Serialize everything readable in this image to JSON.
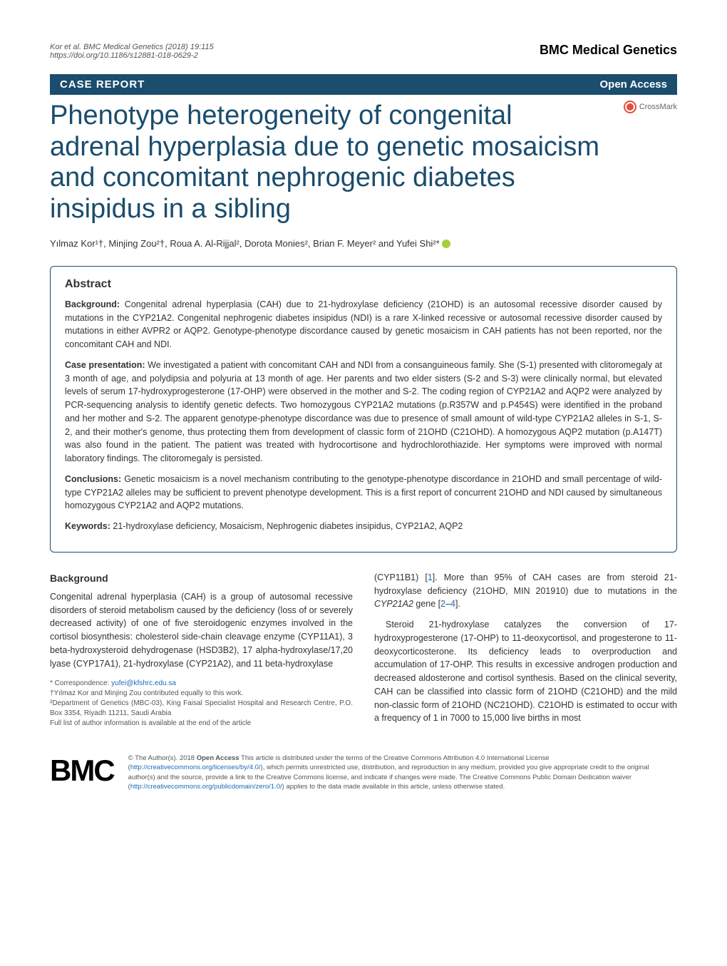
{
  "meta": {
    "citation": "Kor et al. BMC Medical Genetics    (2018) 19:115",
    "doi": "https://doi.org/10.1186/s12881-018-0629-2",
    "journal": "BMC Medical Genetics"
  },
  "article_type_bar": {
    "type": "CASE REPORT",
    "access": "Open Access"
  },
  "crossmark": "CrossMark",
  "title": "Phenotype heterogeneity of congenital adrenal hyperplasia due to genetic mosaicism and concomitant nephrogenic diabetes insipidus in a sibling",
  "authors": "Yılmaz Kor¹†, Minjing Zou²†, Roua A. Al-Rijjal², Dorota Monies², Brian F. Meyer² and Yufei Shi²*",
  "abstract": {
    "heading": "Abstract",
    "background_label": "Background:",
    "background": " Congenital adrenal hyperplasia (CAH) due to 21-hydroxylase deficiency (21OHD) is an autosomal recessive disorder caused by mutations in the CYP21A2. Congenital nephrogenic diabetes insipidus (NDI) is a rare X-linked recessive or autosomal recessive disorder caused by mutations in either AVPR2 or AQP2. Genotype-phenotype discordance caused by genetic mosaicism in CAH patients has not been reported, nor the concomitant CAH and NDI.",
    "case_label": "Case presentation:",
    "case": " We investigated a patient with concomitant CAH and NDI from a consanguineous family. She (S-1) presented with clitoromegaly at 3 month of age, and polydipsia and polyuria at 13 month of age. Her parents and two elder sisters (S-2 and S-3) were clinically normal, but elevated levels of serum 17-hydroxyprogesterone (17-OHP) were observed in the mother and S-2. The coding region of CYP21A2 and AQP2 were analyzed by PCR-sequencing analysis to identify genetic defects. Two homozygous CYP21A2 mutations (p.R357W and p.P454S) were identified in the proband and her mother and S-2. The apparent genotype-phenotype discordance was due to presence of small amount of wild-type CYP21A2 alleles in S-1, S-2, and their mother's genome, thus protecting them from development of classic form of 21OHD (C21OHD). A homozygous AQP2 mutation (p.A147T) was also found in the patient. The patient was treated with hydrocortisone and hydrochlorothiazide. Her symptoms were improved with normal laboratory findings. The clitoromegaly is persisted.",
    "conclusions_label": "Conclusions:",
    "conclusions": " Genetic mosaicism is a novel mechanism contributing to the genotype-phenotype discordance in 21OHD and small percentage of wild-type CYP21A2 alleles may be sufficient to prevent phenotype development. This is a first report of concurrent 21OHD and NDI caused by simultaneous homozygous CYP21A2 and AQP2 mutations.",
    "keywords_label": "Keywords:",
    "keywords": " 21-hydroxylase deficiency, Mosaicism, Nephrogenic diabetes insipidus, CYP21A2, AQP2"
  },
  "body": {
    "heading": "Background",
    "col1_p1": "Congenital adrenal hyperplasia (CAH) is a group of autosomal recessive disorders of steroid metabolism caused by the deficiency (loss of or severely decreased activity) of one of five steroidogenic enzymes involved in the cortisol biosynthesis: cholesterol side-chain cleavage enzyme (CYP11A1), 3 beta-hydroxysteroid dehydrogenase (HSD3B2), 17 alpha-hydroxylase/17,20 lyase (CYP17A1), 21-hydroxylase (CYP21A2), and 11 beta-hydroxylase",
    "col2_p1_a": "(CYP11B1) [",
    "col2_p1_ref1": "1",
    "col2_p1_b": "]. More than 95% of CAH cases are from steroid 21-hydroxylase deficiency (21OHD, MIN 201910) due to mutations in the ",
    "col2_p1_gene": "CYP21A2",
    "col2_p1_c": " gene [",
    "col2_p1_ref2": "2",
    "col2_p1_dash": "–",
    "col2_p1_ref3": "4",
    "col2_p1_d": "].",
    "col2_p2": "Steroid 21-hydroxylase catalyzes the conversion of 17-hydroxyprogesterone (17-OHP) to 11-deoxycortisol, and progesterone to 11-deoxycorticosterone. Its deficiency leads to overproduction and accumulation of 17-OHP. This results in excessive androgen production and decreased aldosterone and cortisol synthesis. Based on the clinical severity, CAH can be classified into classic form of 21OHD (C21OHD) and the mild non-classic form of 21OHD (NC21OHD). C21OHD is estimated to occur with a frequency of 1 in 7000 to 15,000 live births in most"
  },
  "correspondence": {
    "line1": "* Correspondence: ",
    "email": "yufei@kfshrc.edu.sa",
    "line2": "†Yılmaz Kor and Minjing Zou contributed equally to this work.",
    "line3": "²Department of Genetics (MBC-03), King Faisal Specialist Hospital and Research Centre, P.O. Box 3354, Riyadh 11211, Saudi Arabia",
    "line4": "Full list of author information is available at the end of the article"
  },
  "footer": {
    "logo": "BMC",
    "license_a": "© The Author(s). 2018 ",
    "license_bold": "Open Access",
    "license_b": " This article is distributed under the terms of the Creative Commons Attribution 4.0 International License (",
    "license_link1": "http://creativecommons.org/licenses/by/4.0/",
    "license_c": "), which permits unrestricted use, distribution, and reproduction in any medium, provided you give appropriate credit to the original author(s) and the source, provide a link to the Creative Commons license, and indicate if changes were made. The Creative Commons Public Domain Dedication waiver (",
    "license_link2": "http://creativecommons.org/publicdomain/zero/1.0/",
    "license_d": ") applies to the data made available in this article, unless otherwise stated."
  },
  "colors": {
    "primary": "#1a4d6e",
    "link": "#1a6bb8"
  }
}
